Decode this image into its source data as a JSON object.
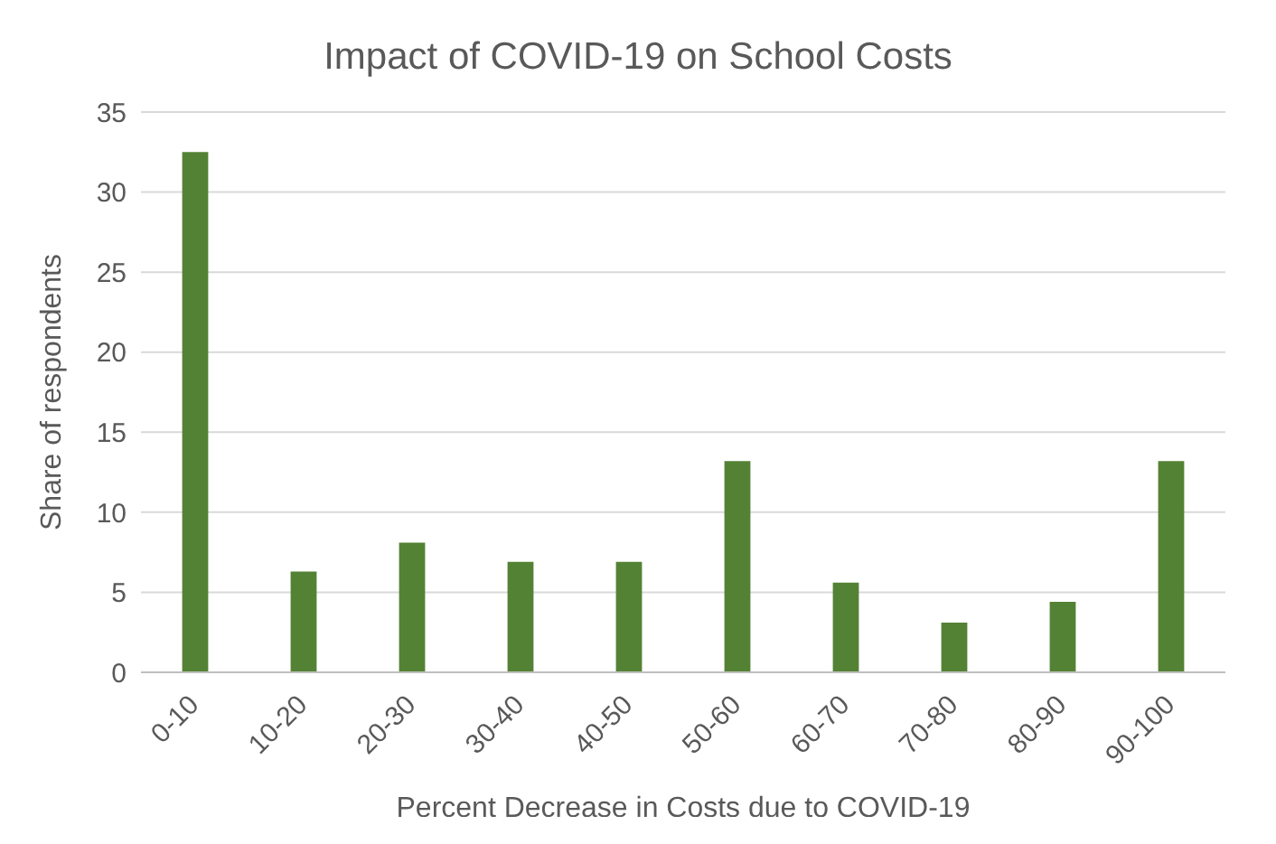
{
  "chart_data": {
    "type": "bar",
    "title": "Impact of COVID-19 on School Costs",
    "xlabel": "Percent Decrease in Costs due to COVID-19",
    "ylabel": "Share of respondents",
    "categories": [
      "0-10",
      "10-20",
      "20-30",
      "30-40",
      "40-50",
      "50-60",
      "60-70",
      "70-80",
      "80-90",
      "90-100"
    ],
    "values": [
      32.5,
      6.3,
      8.1,
      6.9,
      6.9,
      13.2,
      5.6,
      3.1,
      4.4,
      13.2
    ],
    "color": "#548235",
    "ylim": [
      0,
      35
    ],
    "yticks": [
      0,
      5,
      10,
      15,
      20,
      25,
      30,
      35
    ],
    "grid": "y"
  }
}
